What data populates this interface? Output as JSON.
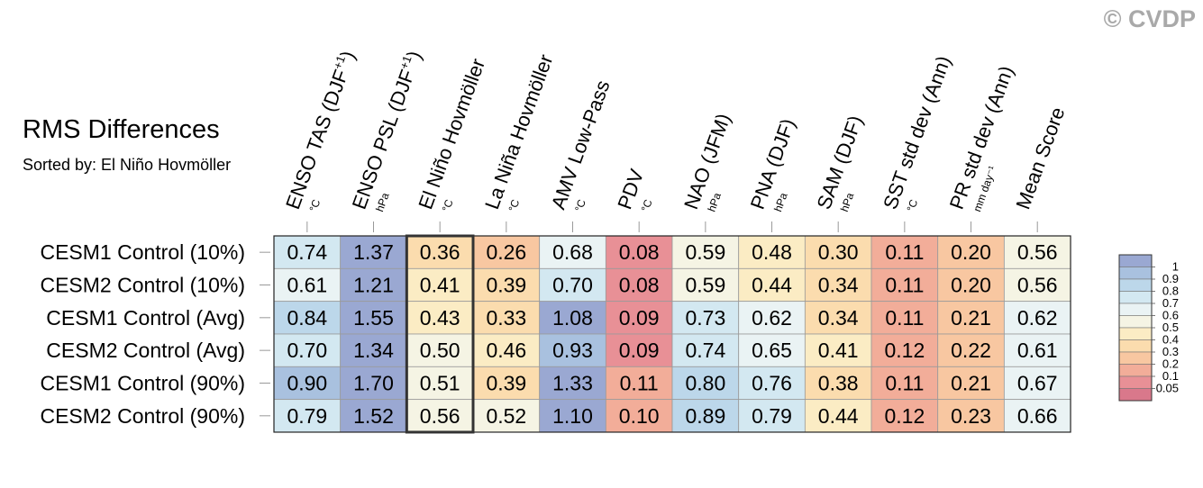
{
  "watermark": "© CVDP",
  "title": "RMS Differences",
  "subtitle": "Sorted by: El Niño Hovmöller",
  "chart_data": {
    "type": "heatmap",
    "columns": [
      {
        "label": "ENSO TAS (DJF",
        "sup": "+1",
        "suffix": ")",
        "unit": "°C"
      },
      {
        "label": "ENSO PSL (DJF",
        "sup": "+1",
        "suffix": ")",
        "unit": "hPa"
      },
      {
        "label": "El Niño Hovmöller",
        "sup": "",
        "suffix": "",
        "unit": "°C"
      },
      {
        "label": "La Niña Hovmöller",
        "sup": "",
        "suffix": "",
        "unit": "°C"
      },
      {
        "label": "AMV Low-Pass",
        "sup": "",
        "suffix": "",
        "unit": "°C"
      },
      {
        "label": "PDV",
        "sup": "",
        "suffix": "",
        "unit": "°C"
      },
      {
        "label": "NAO (JFM)",
        "sup": "",
        "suffix": "",
        "unit": "hPa"
      },
      {
        "label": "PNA (DJF)",
        "sup": "",
        "suffix": "",
        "unit": "hPa"
      },
      {
        "label": "SAM (DJF)",
        "sup": "",
        "suffix": "",
        "unit": "hPa"
      },
      {
        "label": "SST std dev (Ann)",
        "sup": "",
        "suffix": "",
        "unit": "°C"
      },
      {
        "label": "PR std dev (Ann)",
        "sup": "",
        "suffix": "",
        "unit": "mm day⁻¹"
      },
      {
        "label": "Mean Score",
        "sup": "",
        "suffix": "",
        "unit": ""
      }
    ],
    "rows": [
      "CESM1 Control (10%)",
      "CESM2 Control (10%)",
      "CESM1 Control (Avg)",
      "CESM2 Control (Avg)",
      "CESM1 Control (90%)",
      "CESM2 Control (90%)"
    ],
    "values": [
      [
        0.74,
        1.37,
        0.36,
        0.26,
        0.68,
        0.08,
        0.59,
        0.48,
        0.3,
        0.11,
        0.2,
        0.56
      ],
      [
        0.61,
        1.21,
        0.41,
        0.39,
        0.7,
        0.08,
        0.59,
        0.44,
        0.34,
        0.11,
        0.2,
        0.56
      ],
      [
        0.84,
        1.55,
        0.43,
        0.33,
        1.08,
        0.09,
        0.73,
        0.62,
        0.34,
        0.11,
        0.21,
        0.62
      ],
      [
        0.7,
        1.34,
        0.5,
        0.46,
        0.93,
        0.09,
        0.74,
        0.65,
        0.41,
        0.12,
        0.22,
        0.61
      ],
      [
        0.9,
        1.7,
        0.51,
        0.39,
        1.33,
        0.11,
        0.8,
        0.76,
        0.38,
        0.11,
        0.21,
        0.67
      ],
      [
        0.79,
        1.52,
        0.56,
        0.52,
        1.1,
        0.1,
        0.89,
        0.79,
        0.44,
        0.12,
        0.23,
        0.66
      ]
    ],
    "value_labels": [
      [
        "0.74",
        "1.37",
        "0.36",
        "0.26",
        "0.68",
        "0.08",
        "0.59",
        "0.48",
        "0.30",
        "0.11",
        "0.20",
        "0.56"
      ],
      [
        "0.61",
        "1.21",
        "0.41",
        "0.39",
        "0.70",
        "0.08",
        "0.59",
        "0.44",
        "0.34",
        "0.11",
        "0.20",
        "0.56"
      ],
      [
        "0.84",
        "1.55",
        "0.43",
        "0.33",
        "1.08",
        "0.09",
        "0.73",
        "0.62",
        "0.34",
        "0.11",
        "0.21",
        "0.62"
      ],
      [
        "0.70",
        "1.34",
        "0.50",
        "0.46",
        "0.93",
        "0.09",
        "0.74",
        "0.65",
        "0.41",
        "0.12",
        "0.22",
        "0.61"
      ],
      [
        "0.90",
        "1.70",
        "0.51",
        "0.39",
        "1.33",
        "0.11",
        "0.80",
        "0.76",
        "0.38",
        "0.11",
        "0.21",
        "0.67"
      ],
      [
        "0.79",
        "1.52",
        "0.56",
        "0.52",
        "1.10",
        "0.10",
        "0.89",
        "0.79",
        "0.44",
        "0.12",
        "0.23",
        "0.66"
      ]
    ],
    "highlighted_column": "El Niño Hovmöller",
    "colorbar": {
      "labels": [
        "1",
        "0.9",
        "0.8",
        "0.7",
        "0.6",
        "0.5",
        "0.4",
        "0.3",
        "0.2",
        "0.1",
        "0.05"
      ],
      "levels": [
        1,
        0.9,
        0.8,
        0.7,
        0.6,
        0.5,
        0.4,
        0.3,
        0.2,
        0.1,
        0.05
      ],
      "colors": [
        "#9aa8d2",
        "#a9c1df",
        "#bcd7ea",
        "#d3e8f1",
        "#eaf3f4",
        "#f5f4e4",
        "#fbecc4",
        "#fbdcae",
        "#f8c7a1",
        "#f2ad99",
        "#e89096",
        "#d9788b"
      ]
    }
  }
}
